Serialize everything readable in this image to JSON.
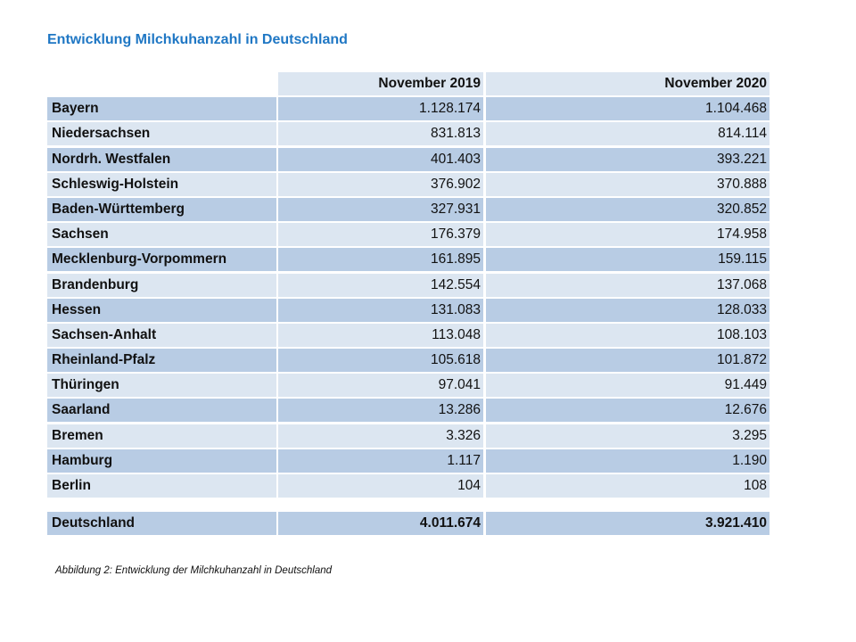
{
  "title": "Entwicklung  Milchkuhanzahl  in Deutschland",
  "table": {
    "headers": [
      "",
      "November 2019",
      "November 2020"
    ],
    "rows": [
      {
        "region": "Bayern",
        "nov2019": "1.128.174",
        "nov2020": "1.104.468"
      },
      {
        "region": "Niedersachsen",
        "nov2019": "831.813",
        "nov2020": "814.114"
      },
      {
        "region": "Nordrh. Westfalen",
        "nov2019": "401.403",
        "nov2020": "393.221"
      },
      {
        "region": "Schleswig-Holstein",
        "nov2019": "376.902",
        "nov2020": "370.888"
      },
      {
        "region": "Baden-Württemberg",
        "nov2019": "327.931",
        "nov2020": "320.852"
      },
      {
        "region": "Sachsen",
        "nov2019": "176.379",
        "nov2020": "174.958"
      },
      {
        "region": "Mecklenburg-Vorpommern",
        "nov2019": "161.895",
        "nov2020": "159.115"
      },
      {
        "region": "Brandenburg",
        "nov2019": "142.554",
        "nov2020": "137.068"
      },
      {
        "region": "Hessen",
        "nov2019": "131.083",
        "nov2020": "128.033"
      },
      {
        "region": "Sachsen-Anhalt",
        "nov2019": "113.048",
        "nov2020": "108.103"
      },
      {
        "region": "Rheinland-Pfalz",
        "nov2019": "105.618",
        "nov2020": "101.872"
      },
      {
        "region": "Thüringen",
        "nov2019": "97.041",
        "nov2020": "91.449"
      },
      {
        "region": "Saarland",
        "nov2019": "13.286",
        "nov2020": "12.676"
      },
      {
        "region": "Bremen",
        "nov2019": "3.326",
        "nov2020": "3.295"
      },
      {
        "region": "Hamburg",
        "nov2019": "1.117",
        "nov2020": "1.190"
      },
      {
        "region": "Berlin",
        "nov2019": "104",
        "nov2020": "108"
      }
    ],
    "total": {
      "region": "Deutschland",
      "nov2019": "4.011.674",
      "nov2020": "3.921.410"
    }
  },
  "caption": "Abbildung 2: Entwicklung der Milchkuhanzahl in Deutschland",
  "colors": {
    "title": "#1f77c4",
    "row_dark": "#b8cce4",
    "row_light": "#dce6f1"
  }
}
